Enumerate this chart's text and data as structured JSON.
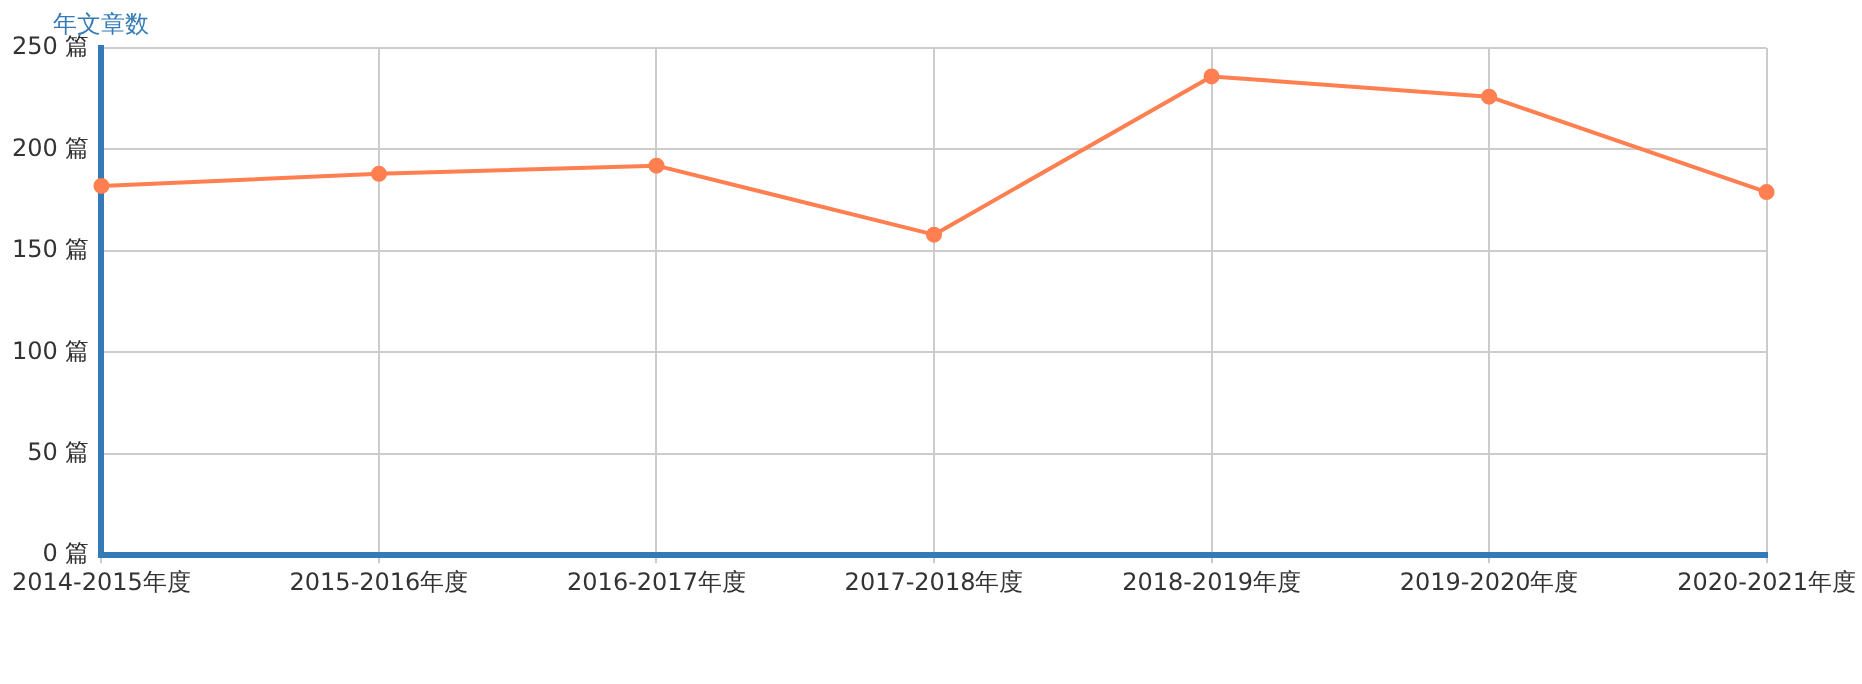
{
  "chart_data": {
    "type": "line",
    "ylabel": "年文章数",
    "categories": [
      "2014-2015年度",
      "2015-2016年度",
      "2016-2017年度",
      "2017-2018年度",
      "2018-2019年度",
      "2019-2020年度",
      "2020-2021年度"
    ],
    "series": [
      {
        "color": "#ff7f50",
        "values": [
          182,
          188,
          192,
          158,
          236,
          226,
          179
        ]
      }
    ],
    "ylim": [
      0,
      250
    ],
    "yticks": [
      {
        "value": 0,
        "label": "0 篇"
      },
      {
        "value": 50,
        "label": "50 篇"
      },
      {
        "value": 100,
        "label": "100 篇"
      },
      {
        "value": 150,
        "label": "150 篇"
      },
      {
        "value": 200,
        "label": "200 篇"
      },
      {
        "value": 250,
        "label": "250 篇"
      }
    ],
    "grid": true,
    "legend": false,
    "marker": "circle",
    "line_style": "solid"
  }
}
